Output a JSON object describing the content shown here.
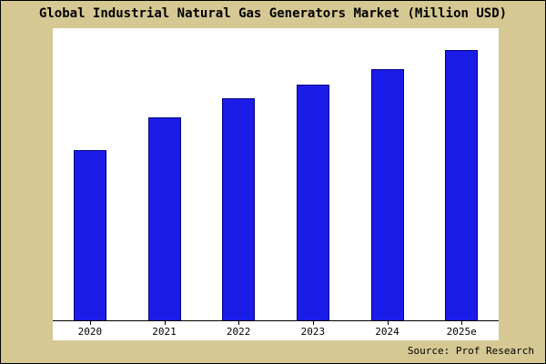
{
  "title": "Global Industrial Natural Gas Generators Market (Million USD)",
  "source": "Source: Prof Research",
  "colors": {
    "background": "#d6c893",
    "plot_background": "#ffffff",
    "bar_fill": "#1c1ce8",
    "bar_border": "#000080",
    "text": "#000000"
  },
  "chart_data": {
    "type": "bar",
    "title": "Global Industrial Natural Gas Generators Market (Million USD)",
    "categories": [
      "2020",
      "2021",
      "2022",
      "2023",
      "2024",
      "2025e"
    ],
    "values": [
      63,
      75,
      82,
      87,
      93,
      100
    ],
    "xlabel": "",
    "ylabel": "",
    "ylim": [
      0,
      108
    ],
    "grid": false,
    "legend": false,
    "y_axis_tick_labels_visible": false,
    "data_labels_visible": false
  }
}
